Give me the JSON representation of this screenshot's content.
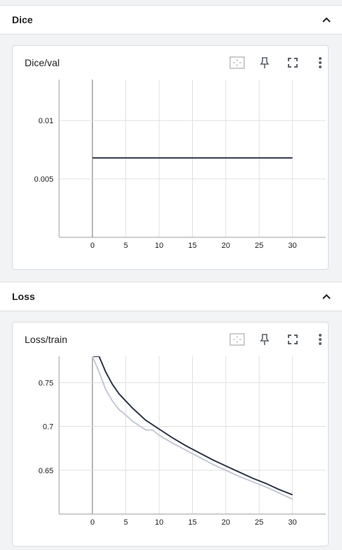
{
  "sections": [
    {
      "title": "Dice",
      "card": {
        "title": "Dice/val",
        "actions": [
          "fit-domain-icon",
          "pin-icon",
          "fullscreen-icon",
          "more-vert-icon"
        ]
      }
    },
    {
      "title": "Loss",
      "card": {
        "title": "Loss/train",
        "actions": [
          "fit-domain-icon",
          "pin-icon",
          "fullscreen-icon",
          "more-vert-icon"
        ]
      }
    }
  ],
  "colors": {
    "series_dark": "#2d3748",
    "series_light": "#c4c9d4",
    "grid": "#e0e0e0",
    "axis": "#9e9e9e",
    "icon": "#5f6368"
  },
  "chart_data": [
    {
      "type": "line",
      "title": "Dice/val",
      "xlim": [
        -5,
        35
      ],
      "ylim": [
        0,
        0.0135
      ],
      "x_ticks": [
        "0",
        "5",
        "10",
        "15",
        "20",
        "25",
        "30"
      ],
      "y_ticks": [
        "0.005",
        "0.01"
      ],
      "series": [
        {
          "x": [
            0,
            30
          ],
          "values": [
            0.0068,
            0.0068
          ]
        }
      ],
      "grid": true
    },
    {
      "type": "line",
      "title": "Loss/train",
      "xlim": [
        -5,
        35
      ],
      "ylim": [
        0.6,
        0.78
      ],
      "x_ticks": [
        "0",
        "5",
        "10",
        "15",
        "20",
        "25",
        "30"
      ],
      "y_ticks": [
        "0.65",
        "0.7",
        "0.75"
      ],
      "series": [
        {
          "x": [
            0,
            1,
            2,
            3,
            4,
            5,
            6,
            7,
            8,
            9,
            10,
            12,
            14,
            16,
            18,
            20,
            22,
            24,
            26,
            28,
            30
          ],
          "values": [
            0.8,
            0.78,
            0.762,
            0.748,
            0.737,
            0.729,
            0.721,
            0.714,
            0.707,
            0.702,
            0.697,
            0.687,
            0.678,
            0.67,
            0.662,
            0.655,
            0.648,
            0.641,
            0.635,
            0.628,
            0.622
          ]
        },
        {
          "x": [
            0,
            1,
            2,
            3,
            4,
            5,
            6,
            7,
            8,
            9,
            10,
            12,
            14,
            16,
            18,
            20,
            22,
            24,
            26,
            28,
            30
          ],
          "values": [
            0.79,
            0.762,
            0.742,
            0.729,
            0.719,
            0.713,
            0.706,
            0.701,
            0.696,
            0.696,
            0.69,
            0.681,
            0.673,
            0.665,
            0.657,
            0.65,
            0.643,
            0.637,
            0.631,
            0.624,
            0.617
          ]
        }
      ],
      "grid": true
    }
  ]
}
